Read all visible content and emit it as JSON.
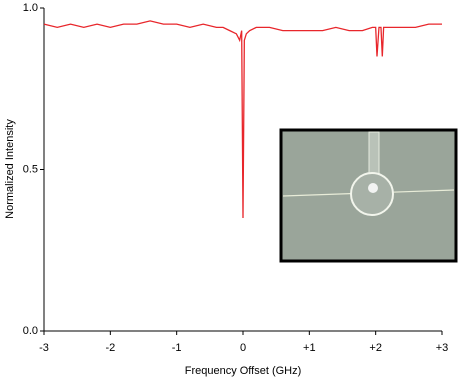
{
  "chart_data": {
    "type": "line",
    "x_label": "Frequency Offset (GHz)",
    "y_label": "Normalized Intensity",
    "xlim": [
      -3,
      3
    ],
    "ylim": [
      0,
      1
    ],
    "xticks": [
      -3,
      -2,
      -1,
      0,
      {
        "value": 1,
        "label": "+1"
      },
      {
        "value": 2,
        "label": "+2"
      },
      {
        "value": 3,
        "label": "+3"
      }
    ],
    "yticks": [
      {
        "value": 0,
        "label": "0.0"
      },
      0.5,
      {
        "value": 1,
        "label": "1.0"
      }
    ],
    "series": [
      {
        "color": "#e8262b",
        "x": [
          -3,
          -2.8,
          -2.6,
          -2.4,
          -2.2,
          -2,
          -1.8,
          -1.6,
          -1.4,
          -1.2,
          -1,
          -0.8,
          -0.6,
          -0.4,
          -0.3,
          -0.2,
          -0.1,
          -0.05,
          -0.02,
          0,
          0.02,
          0.05,
          0.1,
          0.2,
          0.4,
          0.6,
          0.8,
          1,
          1.2,
          1.4,
          1.6,
          1.8,
          1.95,
          2.0,
          2.02,
          2.05,
          2.08,
          2.1,
          2.12,
          2.2,
          2.4,
          2.6,
          2.8,
          3
        ],
        "values": [
          0.95,
          0.94,
          0.95,
          0.94,
          0.95,
          0.94,
          0.95,
          0.95,
          0.96,
          0.95,
          0.95,
          0.94,
          0.95,
          0.94,
          0.94,
          0.93,
          0.92,
          0.9,
          0.93,
          0.35,
          0.9,
          0.92,
          0.93,
          0.94,
          0.94,
          0.93,
          0.93,
          0.93,
          0.93,
          0.94,
          0.93,
          0.93,
          0.94,
          0.94,
          0.85,
          0.94,
          0.94,
          0.85,
          0.94,
          0.94,
          0.94,
          0.94,
          0.95,
          0.95
        ]
      }
    ]
  }
}
